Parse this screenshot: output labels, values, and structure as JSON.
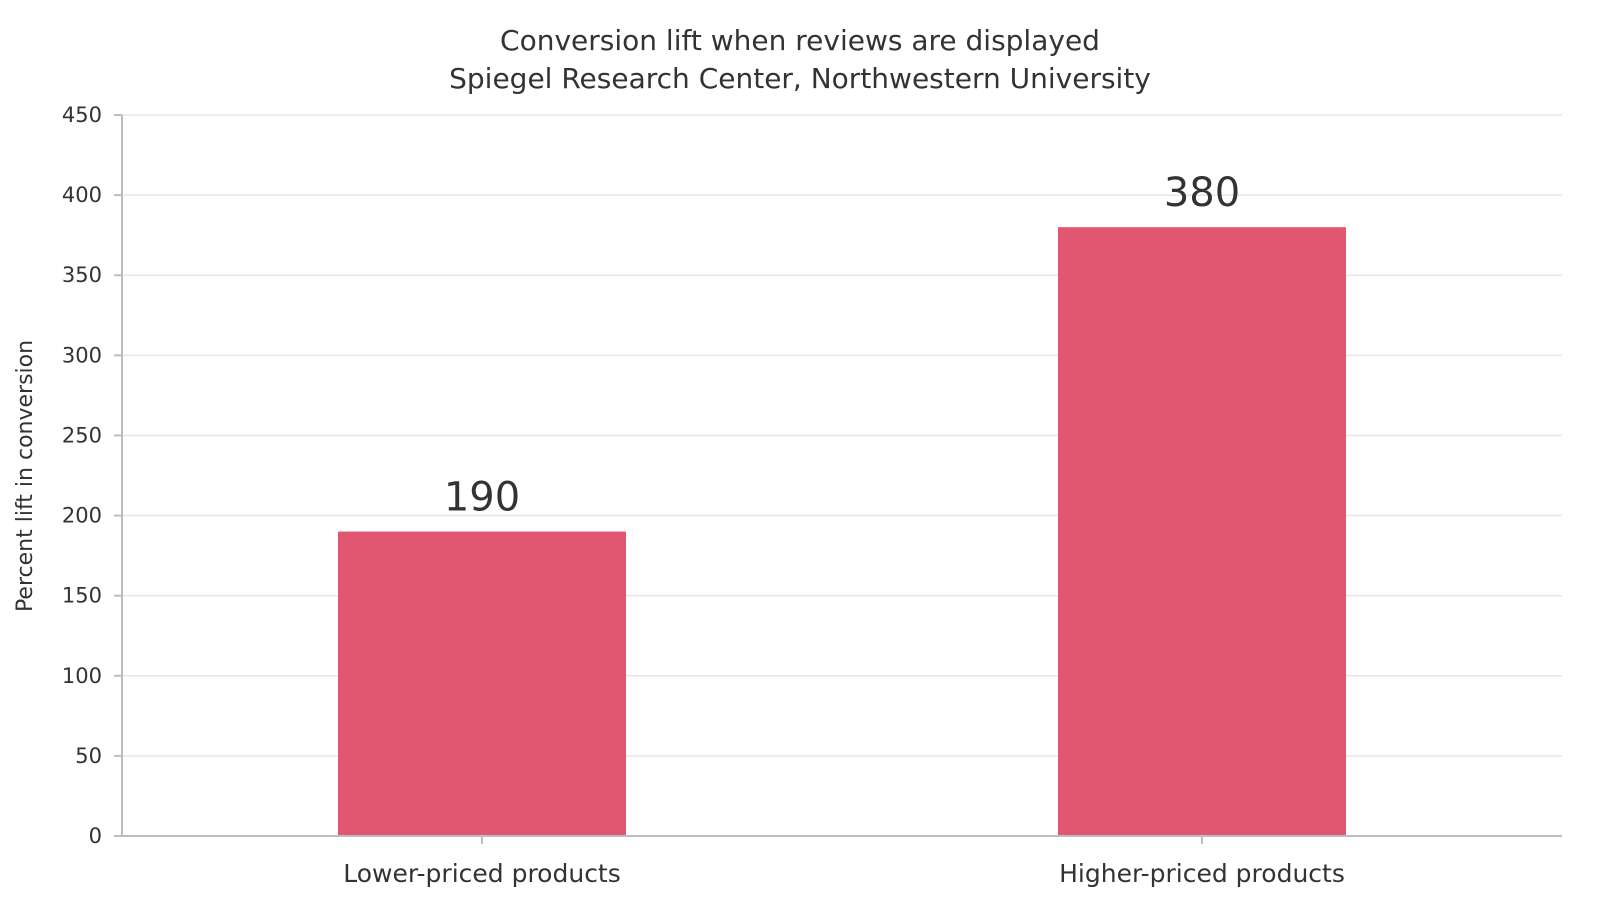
{
  "chart_data": {
    "type": "bar",
    "title": "Conversion lift when reviews are displayed",
    "subtitle": "Spiegel Research Center, Northwestern University",
    "categories": [
      "Lower-priced products",
      "Higher-priced products"
    ],
    "values": [
      190,
      380
    ],
    "data_labels": [
      "190",
      "380"
    ],
    "xlabel": "",
    "ylabel": "Percent lift in conversion",
    "ylim": [
      0,
      450
    ],
    "yticks": [
      0,
      50,
      100,
      150,
      200,
      250,
      300,
      350,
      400,
      450
    ],
    "ytick_labels": [
      "0",
      "50",
      "100",
      "150",
      "200",
      "250",
      "300",
      "350",
      "400",
      "450"
    ],
    "grid": true,
    "legend": "none",
    "bar_color": "#e15671"
  }
}
